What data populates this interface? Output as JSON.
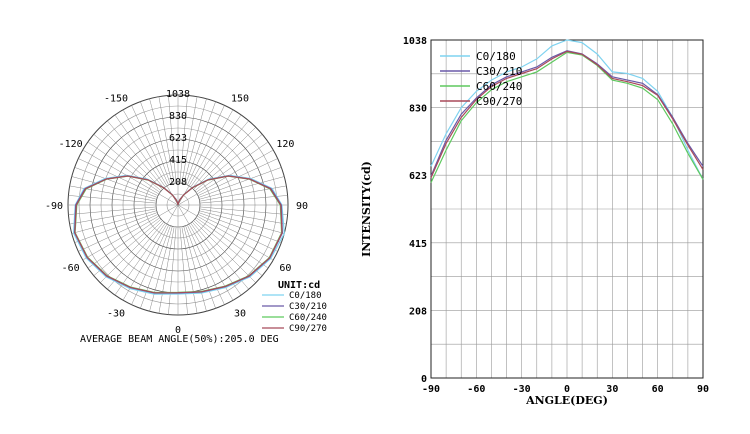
{
  "chart_data": [
    {
      "type": "polar",
      "unit_label": "UNIT:cd",
      "radial_ticks": [
        "208",
        "415",
        "623",
        "830",
        "1038"
      ],
      "rmax": 1038,
      "angle_ticks": [
        "-150",
        "150",
        "-120",
        "120",
        "-90",
        "90",
        "-60",
        "60",
        "-30",
        "30",
        "0"
      ],
      "footer": "AVERAGE BEAM ANGLE(50%):205.0 DEG",
      "series": [
        {
          "name": "C0/180",
          "color": "#7fd3f0",
          "points": [
            [
              0,
              840
            ],
            [
              15,
              860
            ],
            [
              30,
              900
            ],
            [
              45,
              960
            ],
            [
              60,
              1010
            ],
            [
              75,
              1038
            ],
            [
              90,
              980
            ],
            [
              100,
              900
            ],
            [
              110,
              730
            ],
            [
              120,
              560
            ],
            [
              130,
              380
            ],
            [
              140,
              220
            ],
            [
              150,
              120
            ],
            [
              160,
              60
            ],
            [
              170,
              25
            ],
            [
              180,
              0
            ],
            [
              -170,
              25
            ],
            [
              -160,
              60
            ],
            [
              -150,
              120
            ],
            [
              -140,
              220
            ],
            [
              -130,
              380
            ],
            [
              -120,
              560
            ],
            [
              -110,
              730
            ],
            [
              -100,
              900
            ],
            [
              -90,
              970
            ],
            [
              -75,
              1020
            ],
            [
              -60,
              1000
            ],
            [
              -45,
              960
            ],
            [
              -30,
              910
            ],
            [
              -15,
              870
            ]
          ]
        },
        {
          "name": "C30/210",
          "color": "#6a5aa8",
          "points": [
            [
              0,
              830
            ],
            [
              15,
              850
            ],
            [
              30,
              890
            ],
            [
              45,
              950
            ],
            [
              60,
              1000
            ],
            [
              75,
              1020
            ],
            [
              90,
              975
            ],
            [
              100,
              890
            ],
            [
              110,
              720
            ],
            [
              120,
              550
            ],
            [
              130,
              370
            ],
            [
              140,
              215
            ],
            [
              150,
              115
            ],
            [
              160,
              55
            ],
            [
              170,
              22
            ],
            [
              180,
              0
            ],
            [
              -170,
              22
            ],
            [
              -160,
              55
            ],
            [
              -150,
              115
            ],
            [
              -140,
              215
            ],
            [
              -130,
              370
            ],
            [
              -120,
              550
            ],
            [
              -110,
              720
            ],
            [
              -100,
              890
            ],
            [
              -90,
              965
            ],
            [
              -75,
              1010
            ],
            [
              -60,
              990
            ],
            [
              -45,
              950
            ],
            [
              -30,
              900
            ],
            [
              -15,
              860
            ]
          ]
        },
        {
          "name": "C60/240",
          "color": "#5ec95e",
          "points": [
            [
              0,
              825
            ],
            [
              15,
              845
            ],
            [
              30,
              885
            ],
            [
              45,
              945
            ],
            [
              60,
              995
            ],
            [
              75,
              1012
            ],
            [
              90,
              965
            ],
            [
              100,
              880
            ],
            [
              110,
              715
            ],
            [
              120,
              545
            ],
            [
              130,
              365
            ],
            [
              140,
              212
            ],
            [
              150,
              112
            ],
            [
              160,
              52
            ],
            [
              170,
              20
            ],
            [
              180,
              0
            ],
            [
              -170,
              20
            ],
            [
              -160,
              52
            ],
            [
              -150,
              112
            ],
            [
              -140,
              212
            ],
            [
              -130,
              365
            ],
            [
              -120,
              545
            ],
            [
              -110,
              715
            ],
            [
              -100,
              880
            ],
            [
              -90,
              955
            ],
            [
              -75,
              1005
            ],
            [
              -60,
              985
            ],
            [
              -45,
              945
            ],
            [
              -30,
              895
            ],
            [
              -15,
              855
            ]
          ]
        },
        {
          "name": "C90/270",
          "color": "#a84a5a",
          "points": [
            [
              0,
              828
            ],
            [
              15,
              848
            ],
            [
              30,
              888
            ],
            [
              45,
              948
            ],
            [
              60,
              998
            ],
            [
              75,
              1016
            ],
            [
              90,
              970
            ],
            [
              100,
              885
            ],
            [
              110,
              718
            ],
            [
              120,
              548
            ],
            [
              130,
              368
            ],
            [
              140,
              214
            ],
            [
              150,
              114
            ],
            [
              160,
              54
            ],
            [
              170,
              21
            ],
            [
              180,
              0
            ],
            [
              -170,
              21
            ],
            [
              -160,
              54
            ],
            [
              -150,
              114
            ],
            [
              -140,
              214
            ],
            [
              -130,
              368
            ],
            [
              -120,
              548
            ],
            [
              -110,
              718
            ],
            [
              -100,
              885
            ],
            [
              -90,
              960
            ],
            [
              -75,
              1008
            ],
            [
              -60,
              988
            ],
            [
              -45,
              948
            ],
            [
              -30,
              898
            ],
            [
              -15,
              858
            ]
          ]
        }
      ]
    },
    {
      "type": "line",
      "xlabel": "ANGLE(DEG)",
      "ylabel": "INTENSITY(cd)",
      "xlim": [
        -90,
        90
      ],
      "ylim": [
        0,
        1038
      ],
      "x_ticks": [
        "-90",
        "-60",
        "-30",
        "0",
        "30",
        "60",
        "90"
      ],
      "y_ticks": [
        "0",
        "208",
        "415",
        "623",
        "830",
        "1038"
      ],
      "x_tick_values": [
        -90,
        -60,
        -30,
        0,
        30,
        60,
        90
      ],
      "y_tick_values": [
        0,
        208,
        415,
        623,
        830,
        1038
      ],
      "grid": true,
      "legend_position": "top-left",
      "series": [
        {
          "name": "C0/180",
          "color": "#7fd3f0",
          "x": [
            -90,
            -80,
            -70,
            -60,
            -50,
            -40,
            -30,
            -20,
            -10,
            0,
            10,
            20,
            30,
            40,
            50,
            60,
            70,
            80,
            90
          ],
          "y": [
            650,
            750,
            830,
            880,
            915,
            940,
            955,
            980,
            1020,
            1038,
            1030,
            995,
            940,
            935,
            920,
            880,
            800,
            700,
            610
          ]
        },
        {
          "name": "C30/210",
          "color": "#6a5aa8",
          "x": [
            -90,
            -80,
            -70,
            -60,
            -50,
            -40,
            -30,
            -20,
            -10,
            0,
            10,
            20,
            30,
            40,
            50,
            60,
            70,
            80,
            90
          ],
          "y": [
            620,
            730,
            810,
            860,
            900,
            925,
            940,
            955,
            985,
            1005,
            995,
            965,
            925,
            915,
            905,
            870,
            800,
            720,
            650
          ]
        },
        {
          "name": "C60/240",
          "color": "#5ec95e",
          "x": [
            -90,
            -80,
            -70,
            -60,
            -50,
            -40,
            -30,
            -20,
            -10,
            0,
            10,
            20,
            30,
            40,
            50,
            60,
            70,
            80,
            90
          ],
          "y": [
            600,
            700,
            790,
            845,
            885,
            910,
            925,
            940,
            970,
            1000,
            992,
            960,
            915,
            905,
            890,
            855,
            780,
            690,
            610
          ]
        },
        {
          "name": "C90/270",
          "color": "#a84a5a",
          "x": [
            -90,
            -80,
            -70,
            -60,
            -50,
            -40,
            -30,
            -20,
            -10,
            0,
            10,
            20,
            30,
            40,
            50,
            60,
            70,
            80,
            90
          ],
          "y": [
            615,
            720,
            800,
            855,
            895,
            920,
            935,
            950,
            980,
            1003,
            994,
            962,
            920,
            910,
            898,
            868,
            795,
            715,
            640
          ]
        }
      ]
    }
  ]
}
